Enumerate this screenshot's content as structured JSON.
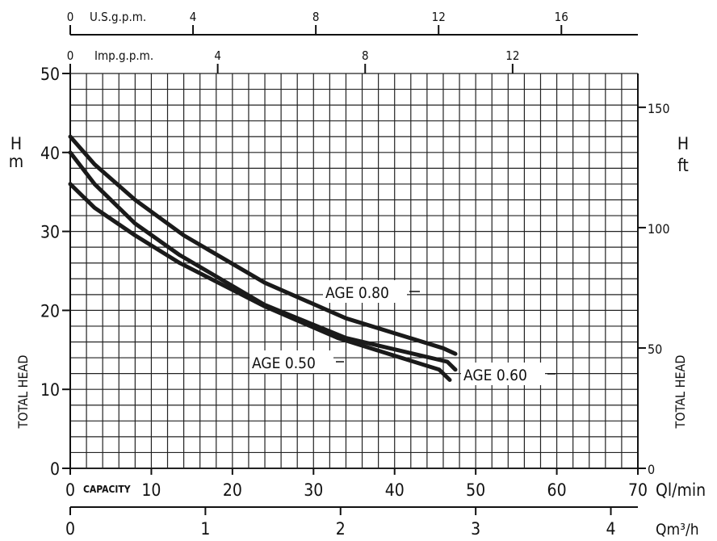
{
  "chart_data": {
    "type": "line",
    "title": "",
    "x_primary_label": "Ql/min",
    "x_primary_ticks": [
      "0",
      "10",
      "20",
      "30",
      "40",
      "50",
      "60",
      "70"
    ],
    "x_primary_range": [
      0,
      70
    ],
    "capacity_label": "CAPACITY",
    "x_m3h_label": "Qm³/h",
    "x_m3h_ticks": [
      "0",
      "1",
      "2",
      "3",
      "4"
    ],
    "x_usgpm_label": "U.S.g.p.m.",
    "x_usgpm_ticks": [
      "0",
      "4",
      "8",
      "12",
      "16"
    ],
    "x_impgpm_label": "Imp.g.p.m.",
    "x_impgpm_ticks": [
      "0",
      "4",
      "8",
      "12"
    ],
    "y_left_unit_top": "H",
    "y_left_unit_bottom": "m",
    "y_left_ticks": [
      "0",
      "10",
      "20",
      "30",
      "40",
      "50"
    ],
    "y_left_range": [
      0,
      50
    ],
    "y_right_unit_top": "H",
    "y_right_unit_bottom": "ft",
    "y_right_ticks": [
      "0",
      "50",
      "100",
      "150"
    ],
    "y_axis_label": "TOTAL HEAD",
    "grid": true,
    "series": [
      {
        "name": "AGE 0.80",
        "x": [
          0,
          3,
          8,
          14,
          24,
          34,
          46,
          47.5
        ],
        "y": [
          42,
          38.5,
          34,
          29.5,
          23.5,
          19,
          15.2,
          14.5
        ]
      },
      {
        "name": "AGE 0.60",
        "x": [
          0,
          3,
          8,
          13.5,
          24,
          34,
          46.5,
          47.5
        ],
        "y": [
          40,
          36,
          31,
          27,
          20.7,
          16.5,
          13.5,
          12.5
        ]
      },
      {
        "name": "AGE 0.50",
        "x": [
          0,
          3,
          8,
          13.5,
          24,
          33,
          45.5,
          46.8
        ],
        "y": [
          36,
          33,
          29.5,
          26,
          20.5,
          16.5,
          12.5,
          11.2
        ]
      }
    ]
  }
}
